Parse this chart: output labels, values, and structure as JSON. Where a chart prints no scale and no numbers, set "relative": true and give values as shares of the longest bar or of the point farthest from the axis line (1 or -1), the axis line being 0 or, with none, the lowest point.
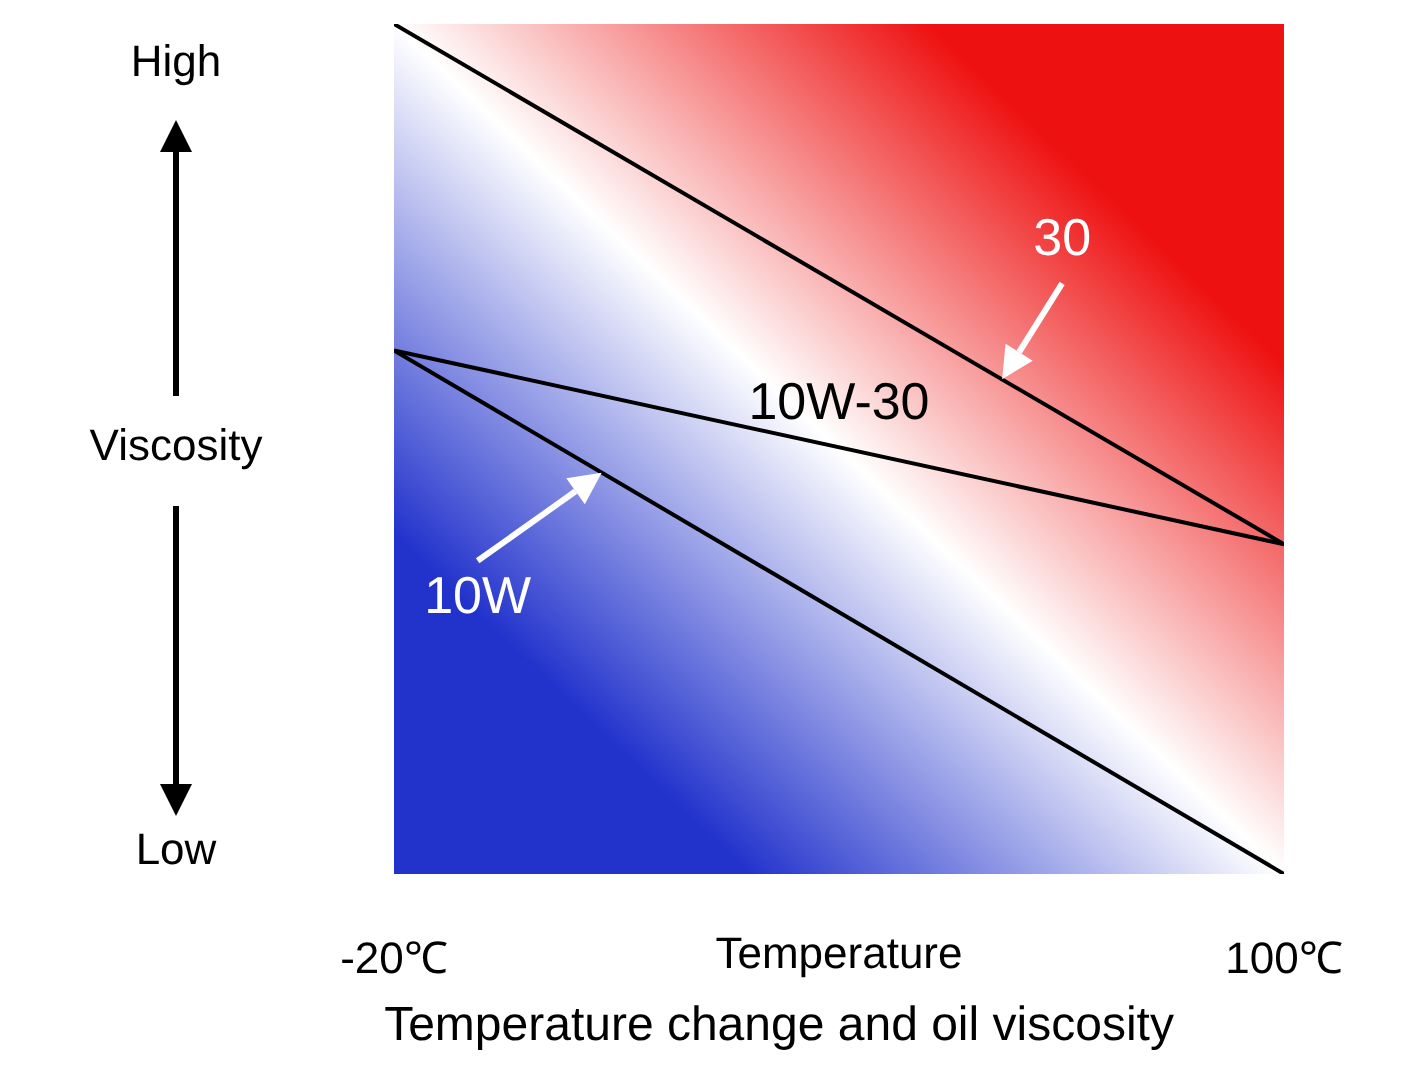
{
  "chart_data": {
    "type": "line",
    "title": "Temperature change and oil viscosity",
    "xlabel": "Temperature",
    "ylabel": "Viscosity",
    "relative": true,
    "x": [
      -20,
      100
    ],
    "xlim": [
      -20,
      100
    ],
    "xticks": [
      {
        "value": -20,
        "label": "-20℃"
      },
      {
        "value": 100,
        "label": "100℃"
      }
    ],
    "series": [
      {
        "color": "#000000",
        "values": [
          1,
          0.388
        ]
      },
      {
        "color": "#000000",
        "values": [
          0.616,
          0.388
        ]
      },
      {
        "color": "#000000",
        "values": [
          0.616,
          0
        ]
      }
    ],
    "annotations": [
      "High",
      "Low",
      {
        "text": "30",
        "x": 62,
        "y": 0.582
      },
      {
        "text": "10W-30",
        "x": 40,
        "y": 0.502
      },
      {
        "text": "10W",
        "x": 8,
        "y": 0.472
      }
    ]
  }
}
